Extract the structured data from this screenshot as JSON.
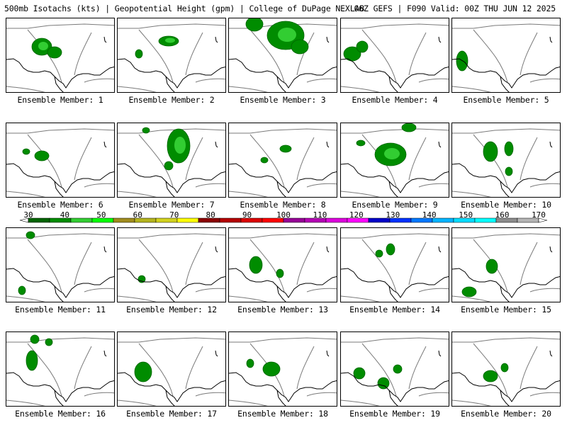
{
  "header": {
    "left": "500mb Isotachs (kts) | Geopotential Height (gpm) | College of DuPage NEXLAB",
    "right": "06Z GEFS | F090 Valid: 00Z THU JUN 12 2025"
  },
  "panel_label_prefix": "Ensemble Member: ",
  "members": [
    "1",
    "2",
    "3",
    "4",
    "5",
    "6",
    "7",
    "8",
    "9",
    "10",
    "11",
    "12",
    "13",
    "14",
    "15",
    "16",
    "17",
    "18",
    "19",
    "20"
  ],
  "colorbar": {
    "ticks": [
      "30",
      "40",
      "50",
      "60",
      "70",
      "80",
      "90",
      "100",
      "110",
      "120",
      "130",
      "140",
      "150",
      "160",
      "170"
    ],
    "colors": [
      "#006400",
      "#008c00",
      "#32cd32",
      "#00ff00",
      "#a08c1e",
      "#b4b41e",
      "#d2d21e",
      "#ffff00",
      "#8b0000",
      "#b40000",
      "#dc0000",
      "#ff0000",
      "#960096",
      "#b400b4",
      "#dc00dc",
      "#ff00ff",
      "#0000c8",
      "#0032ff",
      "#0078ff",
      "#00b4ff",
      "#00dcff",
      "#00ffff",
      "#8c8c8c",
      "#b4b4b4"
    ]
  }
}
